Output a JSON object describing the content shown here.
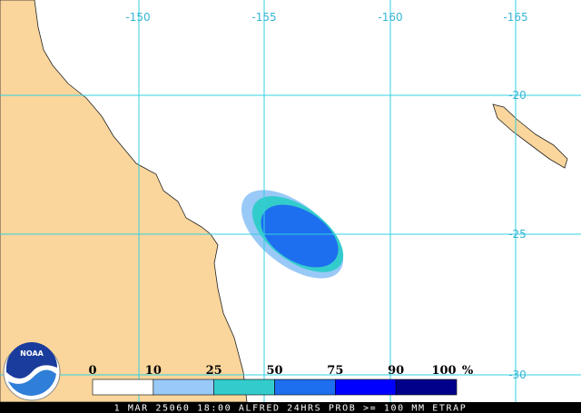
{
  "map": {
    "longitude_labels": [
      "-150",
      "-155",
      "-160",
      "-165"
    ],
    "latitude_labels": [
      "-20",
      "-25",
      "-30"
    ],
    "legend": {
      "labels": [
        "0",
        "10",
        "25",
        "50",
        "75",
        "90",
        "100"
      ],
      "unit": "%",
      "colors": [
        "#ffffff",
        "#99c9f7",
        "#33cccc",
        "#1e6ef0",
        "#0000ff",
        "#00008b"
      ]
    },
    "logo": "NOAA",
    "caption": "1 MAR 25060 18:00 ALFRED 24HRS PROB >= 100 MM ETRAP"
  }
}
